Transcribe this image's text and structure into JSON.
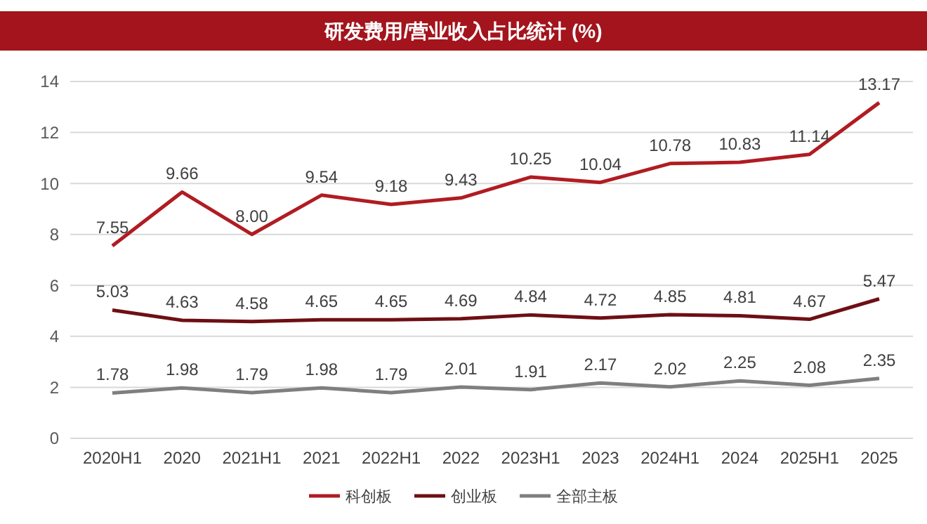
{
  "chart_data": {
    "type": "line",
    "title": "研发费用/营业收入占比统计 (%)",
    "categories": [
      "2020H1",
      "2020",
      "2021H1",
      "2021",
      "2022H1",
      "2022",
      "2023H1",
      "2023",
      "2024H1",
      "2024",
      "2025H1",
      "2025"
    ],
    "series": [
      {
        "name": "科创板",
        "color": "#b01c22",
        "values": [
          7.55,
          9.66,
          8.0,
          9.54,
          9.18,
          9.43,
          10.25,
          10.04,
          10.78,
          10.83,
          11.14,
          13.17
        ]
      },
      {
        "name": "创业板",
        "color": "#6e0f14",
        "values": [
          5.03,
          4.63,
          4.58,
          4.65,
          4.65,
          4.69,
          4.84,
          4.72,
          4.85,
          4.81,
          4.67,
          5.47
        ]
      },
      {
        "name": "全部主板",
        "color": "#7f7f7f",
        "values": [
          1.78,
          1.98,
          1.79,
          1.98,
          1.79,
          2.01,
          1.91,
          2.17,
          2.02,
          2.25,
          2.08,
          2.35
        ]
      }
    ],
    "value_labels": [
      [
        "7.55",
        "9.66",
        "8.00",
        "9.54",
        "9.18",
        "9.43",
        "10.25",
        "10.04",
        "10.78",
        "10.83",
        "11.14",
        "13.17"
      ],
      [
        "5.03",
        "4.63",
        "4.58",
        "4.65",
        "4.65",
        "4.69",
        "4.84",
        "4.72",
        "4.85",
        "4.81",
        "4.67",
        "5.47"
      ],
      [
        "1.78",
        "1.98",
        "1.79",
        "1.98",
        "1.79",
        "2.01",
        "1.91",
        "2.17",
        "2.02",
        "2.25",
        "2.08",
        "2.35"
      ]
    ],
    "ylim": [
      0,
      14
    ],
    "yticks": [
      0,
      2,
      4,
      6,
      8,
      10,
      12,
      14
    ],
    "grid": "y",
    "legend": "bottom",
    "marker": "none",
    "line_style": "solid"
  }
}
